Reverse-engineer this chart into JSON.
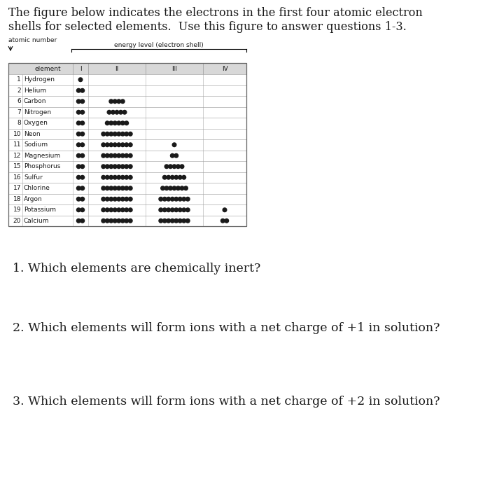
{
  "title_line1": "The figure below indicates the electrons in the first four atomic electron",
  "title_line2": "shells for selected elements.  Use this figure to answer questions 1-3.",
  "atomic_number_label": "atomic number",
  "energy_label": "energy level (electron shell)",
  "rows": [
    {
      "num": "1",
      "name": "Hydrogen",
      "shells": [
        1,
        0,
        0,
        0
      ]
    },
    {
      "num": "2",
      "name": "Helium",
      "shells": [
        2,
        0,
        0,
        0
      ]
    },
    {
      "num": "6",
      "name": "Carbon",
      "shells": [
        2,
        4,
        0,
        0
      ]
    },
    {
      "num": "7",
      "name": "Nitrogen",
      "shells": [
        2,
        5,
        0,
        0
      ]
    },
    {
      "num": "8",
      "name": "Oxygen",
      "shells": [
        2,
        6,
        0,
        0
      ]
    },
    {
      "num": "10",
      "name": "Neon",
      "shells": [
        2,
        8,
        0,
        0
      ]
    },
    {
      "num": "11",
      "name": "Sodium",
      "shells": [
        2,
        8,
        1,
        0
      ]
    },
    {
      "num": "12",
      "name": "Magnesium",
      "shells": [
        2,
        8,
        2,
        0
      ]
    },
    {
      "num": "15",
      "name": "Phosphorus",
      "shells": [
        2,
        8,
        5,
        0
      ]
    },
    {
      "num": "16",
      "name": "Sulfur",
      "shells": [
        2,
        8,
        6,
        0
      ]
    },
    {
      "num": "17",
      "name": "Chlorine",
      "shells": [
        2,
        8,
        7,
        0
      ]
    },
    {
      "num": "18",
      "name": "Argon",
      "shells": [
        2,
        8,
        8,
        0
      ]
    },
    {
      "num": "19",
      "name": "Potassium",
      "shells": [
        2,
        8,
        8,
        1
      ]
    },
    {
      "num": "20",
      "name": "Calcium",
      "shells": [
        2,
        8,
        8,
        2
      ]
    }
  ],
  "questions": [
    "1. Which elements are chemically inert?",
    "2. Which elements will form ions with a net charge of +1 in solution?",
    "3. Which elements will form ions with a net charge of +2 in solution?"
  ],
  "bg_color": "#ffffff",
  "text_color": "#1a1a1a",
  "dot_color": "#1a1a1a",
  "table_line_color": "#aaaaaa",
  "header_bg": "#d8d8d8",
  "title_fontsize": 11.5,
  "label_fontsize": 6.5,
  "cell_fontsize": 6.5,
  "question_fontsize": 12.5
}
